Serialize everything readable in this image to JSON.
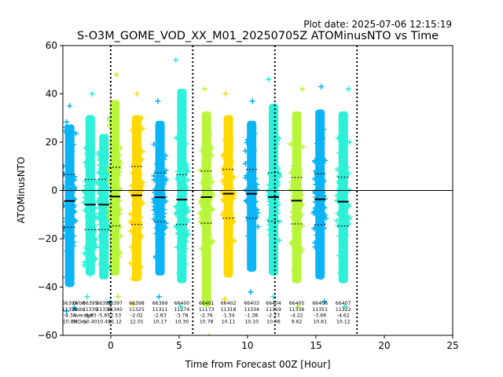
{
  "plot_date": "Plot date: 2025-07-06 12:15:19",
  "chart_data": {
    "type": "scatter",
    "title": "S-O3M_GOME_VOD_XX_M01_20250705Z ATOMinusNTO vs Time",
    "xlabel": "Time from Forecast 00Z [Hour]",
    "ylabel": "ATOMinusNTO",
    "xlim": [
      -3.5,
      25
    ],
    "ylim": [
      -60,
      60
    ],
    "xticks": [
      0,
      5,
      10,
      15,
      20,
      25
    ],
    "yticks": [
      -60,
      -40,
      -20,
      0,
      20,
      40,
      60
    ],
    "grid": false,
    "zero_line": 0,
    "forecast_boundaries": [
      0,
      6,
      12,
      18
    ],
    "legend_rows": [
      "Orbit",
      "Nobs",
      "Average",
      "StDev"
    ],
    "orbits": [
      {
        "orbit": "66394",
        "time": -3.0,
        "nobs": "11325",
        "average": "-4.34",
        "stdev": "10.89",
        "min": -50,
        "max": 35,
        "color": "#0ab4f5"
      },
      {
        "orbit": "66395",
        "time": -1.5,
        "nobs": "11339",
        "average": "-5.85",
        "stdev": "10.40",
        "min": -44,
        "max": 40,
        "color": "#2cf0d8"
      },
      {
        "orbit": "66396",
        "time": -0.5,
        "nobs": "11339",
        "average": "-5.85",
        "stdev": "10.40",
        "min": -46,
        "max": 30,
        "color": "#2cf0d8"
      },
      {
        "orbit": "66397",
        "time": 0.3,
        "nobs": "11345",
        "average": "-2.53",
        "stdev": "12.12",
        "min": -44,
        "max": 48,
        "color": "#b8f53a"
      },
      {
        "orbit": "66398",
        "time": 1.9,
        "nobs": "11325",
        "average": "-2.02",
        "stdev": "12.01",
        "min": -47,
        "max": 40,
        "color": "#ffd800"
      },
      {
        "orbit": "66399",
        "time": 3.6,
        "nobs": "11311",
        "average": "-2.83",
        "stdev": "10.17",
        "min": -44,
        "max": 37,
        "color": "#0ab4f5"
      },
      {
        "orbit": "66400",
        "time": 5.2,
        "nobs": "11274",
        "average": "-3.78",
        "stdev": "10.30",
        "min": -48,
        "max": 54,
        "color": "#2cf0d8"
      },
      {
        "orbit": "66401",
        "time": 7.0,
        "nobs": "11173",
        "average": "-2.76",
        "stdev": "10.78",
        "min": -60,
        "max": 42,
        "color": "#b8f53a"
      },
      {
        "orbit": "66402",
        "time": 8.6,
        "nobs": "11318",
        "average": "-1.34",
        "stdev": "10.11",
        "min": -45,
        "max": 40,
        "color": "#ffd800"
      },
      {
        "orbit": "66403",
        "time": 10.3,
        "nobs": "11334",
        "average": "-1.38",
        "stdev": "10.10",
        "min": -42,
        "max": 37,
        "color": "#0ab4f5"
      },
      {
        "orbit": "66404",
        "time": 11.9,
        "nobs": "11319",
        "average": "-2.73",
        "stdev": "10.06",
        "min": -44,
        "max": 46,
        "color": "#2cf0d8"
      },
      {
        "orbit": "66405",
        "time": 13.6,
        "nobs": "11336",
        "average": "-4.22",
        "stdev": "9.62",
        "min": -48,
        "max": 42,
        "color": "#b8f53a"
      },
      {
        "orbit": "66406",
        "time": 15.3,
        "nobs": "11351",
        "average": "-3.66",
        "stdev": "10.61",
        "min": -46,
        "max": 43,
        "color": "#0ab4f5"
      },
      {
        "orbit": "66407",
        "time": 17.0,
        "nobs": "11322",
        "average": "-4.62",
        "stdev": "10.12",
        "min": -48,
        "max": 42,
        "color": "#2cf0d8"
      }
    ]
  }
}
